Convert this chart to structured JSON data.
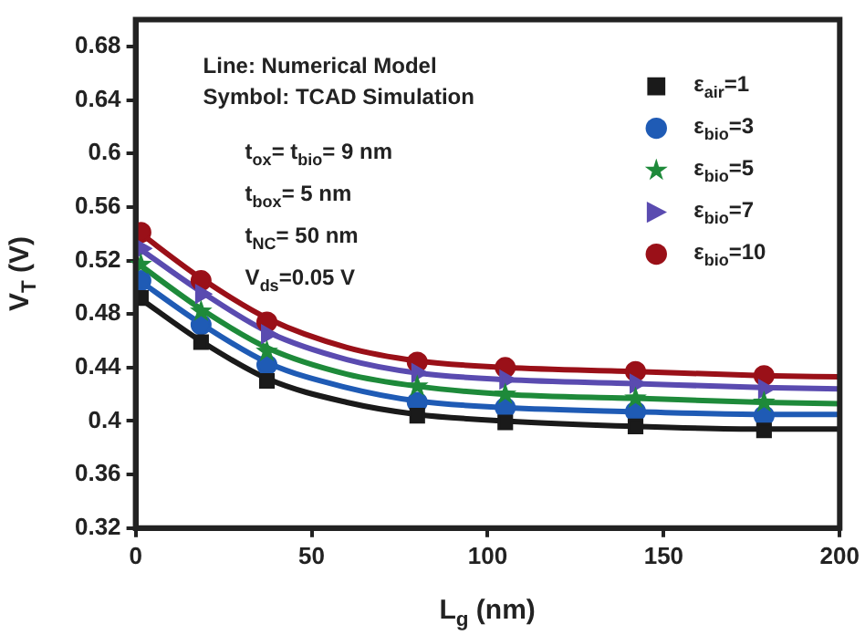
{
  "chart_data": {
    "type": "line",
    "xlabel": "L$_{g}$ (nm)",
    "ylabel": "V$_{T}$ (V)",
    "xlim": [
      0,
      200
    ],
    "xticks": [
      0,
      50,
      100,
      150,
      200
    ],
    "ylim": [
      0.32,
      0.7
    ],
    "yticks": [
      0.32,
      0.36,
      0.4,
      0.44,
      0.48,
      0.52,
      0.56,
      0.6,
      0.64,
      0.68
    ],
    "grid": false,
    "legend": "top right",
    "line_style": "solid",
    "annotations": [
      "Line: Numerical Model",
      "Symbol: TCAD Simulation",
      "t$_{ox}$= t$_{bio}$= 9 nm",
      "t$_{box}$= 5 nm",
      "t$_{NC}$= 50 nm",
      "V$_{ds}$=0.05 V"
    ],
    "series": [
      {
        "type": "line",
        "marker": "none",
        "color": "#1a1a1a",
        "x": [
          0,
          19,
          38,
          60,
          80,
          105,
          142,
          178,
          200
        ],
        "values": [
          0.494,
          0.459,
          0.431,
          0.414,
          0.405,
          0.4,
          0.396,
          0.394,
          0.394
        ]
      },
      {
        "type": "line",
        "marker": "none",
        "color": "#1f5bb5",
        "x": [
          0,
          19,
          38,
          60,
          80,
          105,
          142,
          178,
          200
        ],
        "values": [
          0.507,
          0.472,
          0.443,
          0.425,
          0.415,
          0.41,
          0.407,
          0.405,
          0.405
        ]
      },
      {
        "type": "line",
        "marker": "none",
        "color": "#1e8a3a",
        "x": [
          0,
          19,
          38,
          60,
          80,
          105,
          142,
          178,
          200
        ],
        "values": [
          0.519,
          0.483,
          0.454,
          0.435,
          0.426,
          0.42,
          0.417,
          0.414,
          0.413
        ]
      },
      {
        "type": "line",
        "marker": "none",
        "color": "#5a4bb0",
        "x": [
          0,
          19,
          38,
          60,
          80,
          105,
          142,
          178,
          200
        ],
        "values": [
          0.531,
          0.496,
          0.466,
          0.446,
          0.436,
          0.431,
          0.428,
          0.425,
          0.424
        ]
      },
      {
        "type": "line",
        "marker": "none",
        "color": "#9a1018",
        "x": [
          0,
          19,
          38,
          60,
          80,
          105,
          142,
          178,
          200
        ],
        "values": [
          0.543,
          0.506,
          0.476,
          0.455,
          0.445,
          0.44,
          0.437,
          0.434,
          0.433
        ]
      },
      {
        "type": "scatter",
        "name": "ε$_{air}$=1",
        "marker": "square",
        "color": "#1a1a1a",
        "x": [
          1.5,
          18.6,
          37.3,
          80,
          105,
          142,
          178.5
        ],
        "values": [
          0.492,
          0.459,
          0.43,
          0.404,
          0.399,
          0.396,
          0.393
        ]
      },
      {
        "type": "scatter",
        "name": "ε$_{bio}$=3",
        "marker": "circle",
        "color": "#1f5bb5",
        "x": [
          1.5,
          18.6,
          37.3,
          80,
          105,
          142,
          178.5
        ],
        "values": [
          0.505,
          0.472,
          0.442,
          0.414,
          0.41,
          0.407,
          0.404
        ]
      },
      {
        "type": "scatter",
        "name": "ε$_{bio}$=5",
        "marker": "star",
        "color": "#1e8a3a",
        "x": [
          1.5,
          18.6,
          37.3,
          80,
          105,
          142,
          178.5
        ],
        "values": [
          0.517,
          0.482,
          0.452,
          0.426,
          0.42,
          0.417,
          0.414
        ]
      },
      {
        "type": "scatter",
        "name": "ε$_{bio}$=7",
        "marker": "triangle",
        "color": "#5a4bb0",
        "x": [
          1.5,
          18.6,
          37.3,
          80,
          105,
          142,
          178.5
        ],
        "values": [
          0.529,
          0.495,
          0.465,
          0.436,
          0.431,
          0.428,
          0.424
        ]
      },
      {
        "type": "scatter",
        "name": "ε$_{bio}$=10",
        "marker": "circle",
        "color": "#9a1018",
        "x": [
          1.5,
          18.6,
          37.3,
          80,
          105,
          142,
          178.5
        ],
        "values": [
          0.541,
          0.505,
          0.474,
          0.444,
          0.44,
          0.437,
          0.434
        ]
      }
    ]
  }
}
